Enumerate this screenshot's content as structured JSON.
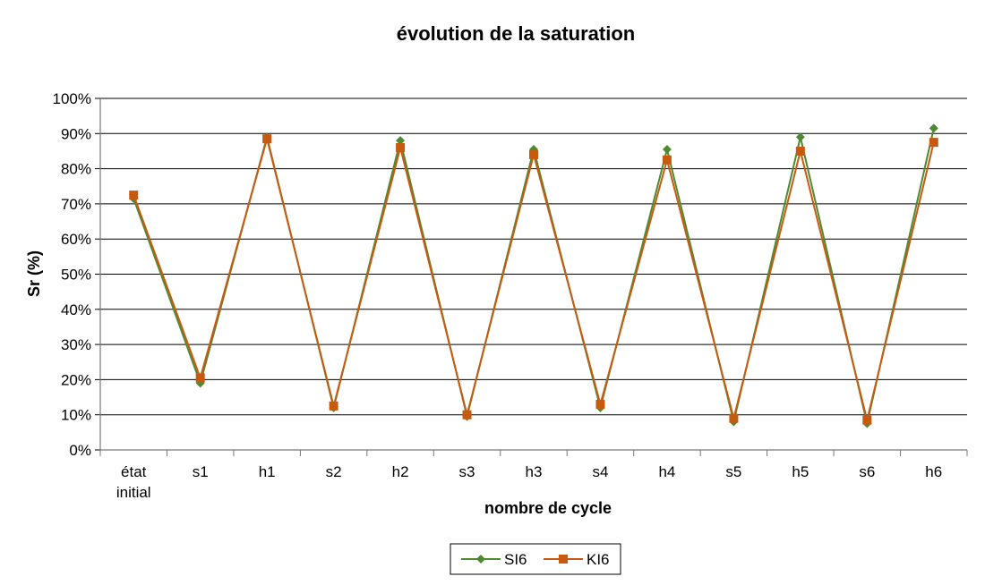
{
  "chart_data": {
    "type": "line",
    "title": "évolution de la saturation",
    "xlabel": "nombre de cycle",
    "ylabel": "Sr (%)",
    "categories": [
      [
        "état",
        "initial"
      ],
      [
        "s1"
      ],
      [
        "h1"
      ],
      [
        "s2"
      ],
      [
        "h2"
      ],
      [
        "s3"
      ],
      [
        "h3"
      ],
      [
        "s4"
      ],
      [
        "h4"
      ],
      [
        "s5"
      ],
      [
        "h5"
      ],
      [
        "s6"
      ],
      [
        "h6"
      ]
    ],
    "yticks": [
      "0%",
      "10%",
      "20%",
      "30%",
      "40%",
      "50%",
      "60%",
      "70%",
      "80%",
      "90%",
      "100%"
    ],
    "ylim": [
      0,
      100
    ],
    "grid": true,
    "legend_position": "bottom",
    "series": [
      {
        "name": "SI6",
        "color": "#4e8a32",
        "marker": "diamond",
        "values": [
          71.5,
          19,
          89,
          12,
          88,
          9.5,
          85.5,
          12,
          85.5,
          8,
          89,
          7.5,
          91.5
        ]
      },
      {
        "name": "KI6",
        "color": "#c85a10",
        "marker": "square",
        "values": [
          72.5,
          20.5,
          88.5,
          12.5,
          86,
          10,
          84,
          13,
          82.5,
          9,
          85,
          8.5,
          87.5
        ]
      }
    ]
  }
}
